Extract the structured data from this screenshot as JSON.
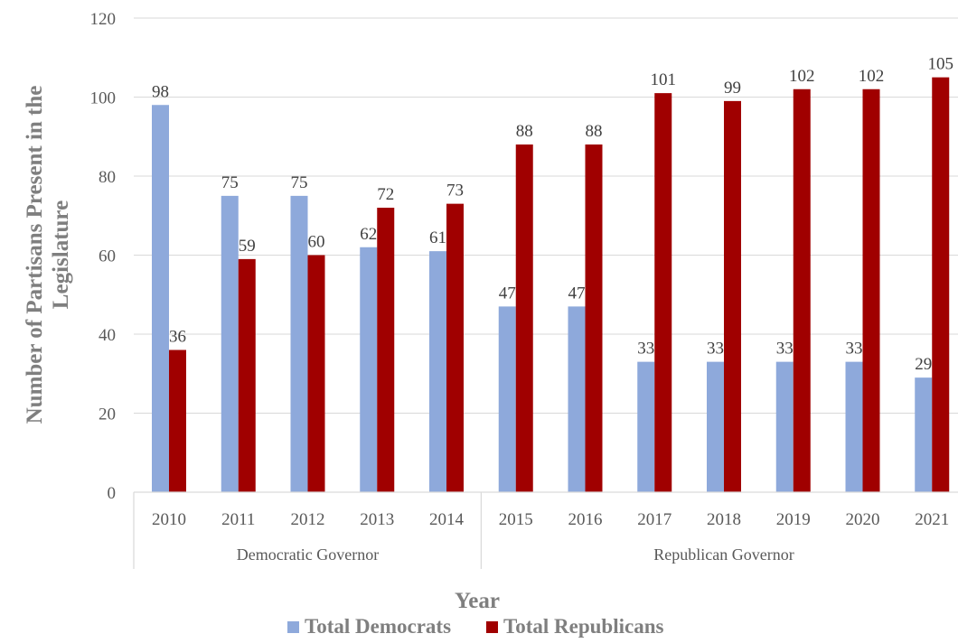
{
  "chart_data": {
    "type": "bar",
    "categories": [
      "2010",
      "2011",
      "2012",
      "2013",
      "2014",
      "2015",
      "2016",
      "2017",
      "2018",
      "2019",
      "2020",
      "2021"
    ],
    "groups": [
      {
        "label": "Democratic Governor",
        "categories": [
          "2010",
          "2011",
          "2012",
          "2013",
          "2014"
        ]
      },
      {
        "label": "Republican Governor",
        "categories": [
          "2015",
          "2016",
          "2017",
          "2018",
          "2019",
          "2020",
          "2021"
        ]
      }
    ],
    "series": [
      {
        "name": "Total Democrats",
        "color": "#8EA9DB",
        "values": [
          98,
          75,
          75,
          62,
          61,
          47,
          47,
          33,
          33,
          33,
          33,
          29
        ]
      },
      {
        "name": "Total Republicans",
        "color": "#A00000",
        "values": [
          36,
          59,
          60,
          72,
          73,
          88,
          88,
          101,
          99,
          102,
          102,
          105
        ]
      }
    ],
    "xlabel": "Year",
    "ylabel": "Number of Partisans Present in the Legislature",
    "ylim": [
      0,
      120
    ],
    "yticks": [
      0,
      20,
      40,
      60,
      80,
      100,
      120
    ],
    "grid": true,
    "legend": "bottom"
  }
}
